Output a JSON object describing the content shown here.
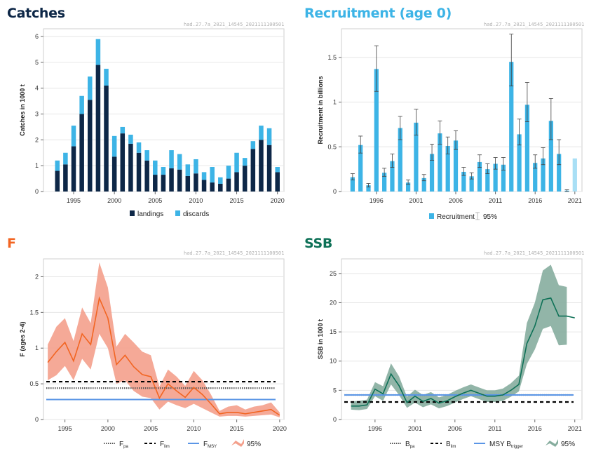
{
  "panels": [
    {
      "title": "Catches",
      "code": "had.27.7a_2021_14545_2021111100501",
      "title_color": "#0d2747"
    },
    {
      "title": "Recruitment (age 0)",
      "code": "had.27.7a_2021_14545_2021111100501",
      "title_color": "#3db4e6"
    },
    {
      "title": "F",
      "code": "had.27.7a_2021_14545_2021111100501",
      "title_color": "#f26522"
    },
    {
      "title": "SSB",
      "code": "had.27.7a_2021_14545_2021111100501",
      "title_color": "#0e7157"
    }
  ],
  "chart_data": [
    {
      "type": "bar",
      "stacked": true,
      "ylabel": "Catches in 1000 t",
      "xlabel": "",
      "ylim": [
        0,
        6.3
      ],
      "yticks": [
        0,
        1,
        2,
        3,
        4,
        5,
        6
      ],
      "xticks": [
        1995,
        2000,
        2005,
        2010,
        2015,
        2020
      ],
      "x": [
        1993,
        1994,
        1995,
        1996,
        1997,
        1998,
        1999,
        2000,
        2001,
        2002,
        2003,
        2004,
        2005,
        2006,
        2007,
        2008,
        2009,
        2010,
        2011,
        2012,
        2013,
        2014,
        2015,
        2016,
        2017,
        2018,
        2019,
        2020
      ],
      "series": [
        {
          "name": "landings",
          "color": "#0d2747",
          "values": [
            0.8,
            1.05,
            1.75,
            3.0,
            3.55,
            4.9,
            4.1,
            1.35,
            2.25,
            1.85,
            1.5,
            1.2,
            0.65,
            0.65,
            0.9,
            0.85,
            0.6,
            0.7,
            0.45,
            0.35,
            0.3,
            0.5,
            0.75,
            1.0,
            1.65,
            2.0,
            1.8,
            0.75
          ]
        },
        {
          "name": "discards",
          "color": "#3db4e6",
          "values": [
            0.4,
            0.45,
            0.8,
            0.7,
            0.9,
            1.0,
            0.65,
            0.8,
            0.25,
            0.35,
            0.4,
            0.4,
            0.55,
            0.3,
            0.7,
            0.6,
            0.45,
            0.55,
            0.3,
            0.6,
            0.25,
            0.5,
            0.75,
            0.3,
            0.3,
            0.55,
            0.65,
            0.2
          ]
        }
      ],
      "legend": [
        "landings",
        "discards"
      ],
      "legend_position": "bottom"
    },
    {
      "type": "bar",
      "ylabel": "Recruitment in billions",
      "xlabel": "",
      "ylim": [
        0,
        1.82
      ],
      "yticks": [
        0,
        0.5,
        1,
        1.5
      ],
      "xticks": [
        1996,
        2001,
        2006,
        2011,
        2016,
        2021
      ],
      "x": [
        1993,
        1994,
        1995,
        1996,
        1997,
        1998,
        1999,
        2000,
        2001,
        2002,
        2003,
        2004,
        2005,
        2006,
        2007,
        2008,
        2009,
        2010,
        2011,
        2012,
        2013,
        2014,
        2015,
        2016,
        2017,
        2018,
        2019,
        2020,
        2021
      ],
      "values": [
        0.16,
        0.52,
        0.07,
        1.37,
        0.21,
        0.34,
        0.71,
        0.1,
        0.77,
        0.15,
        0.42,
        0.65,
        0.51,
        0.57,
        0.22,
        0.17,
        0.33,
        0.25,
        0.31,
        0.3,
        1.45,
        0.64,
        0.97,
        0.32,
        0.37,
        0.79,
        0.42,
        0.01,
        0.37
      ],
      "ci_low": [
        0.13,
        0.43,
        0.05,
        1.12,
        0.17,
        0.27,
        0.58,
        0.08,
        0.63,
        0.12,
        0.35,
        0.53,
        0.42,
        0.47,
        0.18,
        0.14,
        0.27,
        0.2,
        0.25,
        0.24,
        1.18,
        0.52,
        0.78,
        0.26,
        0.3,
        0.58,
        0.3,
        0.0,
        null
      ],
      "ci_high": [
        0.2,
        0.62,
        0.09,
        1.63,
        0.26,
        0.42,
        0.84,
        0.13,
        0.92,
        0.19,
        0.53,
        0.79,
        0.61,
        0.68,
        0.27,
        0.21,
        0.41,
        0.31,
        0.38,
        0.38,
        1.76,
        0.81,
        1.22,
        0.41,
        0.49,
        1.04,
        0.58,
        0.02,
        null
      ],
      "colors": {
        "bar": "#3db4e6",
        "bar_last": "#a8dff5",
        "ci": "#404040"
      },
      "legend": [
        "Recruitment",
        "95%"
      ],
      "legend_position": "bottom"
    },
    {
      "type": "line",
      "ylabel": "F (ages 2-4)",
      "xlabel": "",
      "ylim": [
        0,
        2.25
      ],
      "yticks": [
        0,
        0.5,
        1,
        1.5,
        2
      ],
      "xticks": [
        1995,
        2000,
        2005,
        2010,
        2015,
        2020
      ],
      "x": [
        1993,
        1994,
        1995,
        1996,
        1997,
        1998,
        1999,
        2000,
        2001,
        2002,
        2003,
        2004,
        2005,
        2006,
        2007,
        2008,
        2009,
        2010,
        2011,
        2012,
        2013,
        2014,
        2015,
        2016,
        2017,
        2018,
        2019,
        2020
      ],
      "series": [
        {
          "name": "F",
          "color": "#f26522",
          "values": [
            0.8,
            0.95,
            1.08,
            0.82,
            1.2,
            1.05,
            1.7,
            1.42,
            0.77,
            0.9,
            0.74,
            0.63,
            0.6,
            0.3,
            0.5,
            0.4,
            0.31,
            0.45,
            0.35,
            0.22,
            0.08,
            0.1,
            0.1,
            0.08,
            0.1,
            0.12,
            0.14,
            0.06
          ]
        }
      ],
      "ci_low": [
        0.55,
        0.62,
        0.75,
        0.55,
        0.85,
        0.7,
        1.2,
        1.0,
        0.5,
        0.55,
        0.4,
        0.32,
        0.3,
        0.14,
        0.25,
        0.2,
        0.16,
        0.22,
        0.16,
        0.1,
        0.04,
        0.05,
        0.05,
        0.04,
        0.05,
        0.06,
        0.07,
        0.03
      ],
      "ci_high": [
        1.05,
        1.3,
        1.42,
        1.1,
        1.57,
        1.35,
        2.2,
        1.85,
        1.02,
        1.2,
        1.08,
        0.95,
        0.9,
        0.46,
        0.7,
        0.6,
        0.47,
        0.68,
        0.55,
        0.35,
        0.12,
        0.18,
        0.2,
        0.14,
        0.18,
        0.2,
        0.24,
        0.1
      ],
      "ref_lines": [
        {
          "name": "Fpa",
          "value": 0.44,
          "style": "dotted",
          "color": "#555555"
        },
        {
          "name": "Flim",
          "value": 0.53,
          "style": "dashed",
          "color": "#000000"
        },
        {
          "name": "FMSY",
          "value": 0.28,
          "style": "solid",
          "color": "#5b96e6"
        }
      ],
      "legend": [
        {
          "main": "F",
          "sub": "pa"
        },
        {
          "main": "F",
          "sub": "lim"
        },
        {
          "main": "F",
          "sub": "MSY"
        },
        {
          "main": "95%",
          "sub": ""
        }
      ],
      "band_color": "#f4a08c",
      "legend_position": "bottom"
    },
    {
      "type": "line",
      "ylabel": "SSB in 1000 t",
      "xlabel": "",
      "ylim": [
        0,
        27.5
      ],
      "yticks": [
        0,
        5,
        10,
        15,
        20,
        25
      ],
      "xticks": [
        1996,
        2001,
        2006,
        2011,
        2016,
        2021
      ],
      "x": [
        1993,
        1994,
        1995,
        1996,
        1997,
        1998,
        1999,
        2000,
        2001,
        2002,
        2003,
        2004,
        2005,
        2006,
        2007,
        2008,
        2009,
        2010,
        2011,
        2012,
        2013,
        2014,
        2015,
        2016,
        2017,
        2018,
        2019,
        2020,
        2021
      ],
      "series": [
        {
          "name": "SSB",
          "color": "#0e7157",
          "values": [
            2.3,
            2.3,
            2.5,
            5.2,
            4.4,
            7.8,
            5.8,
            2.9,
            4.0,
            3.1,
            3.6,
            2.8,
            3.2,
            3.9,
            4.5,
            5.0,
            4.5,
            4.0,
            4.0,
            4.2,
            5.0,
            6.0,
            13.0,
            16.0,
            20.5,
            20.8,
            17.7,
            17.7,
            17.4
          ]
        }
      ],
      "ci_low": [
        1.7,
        1.6,
        1.8,
        4.0,
        3.2,
        6.0,
        4.2,
        2.0,
        2.9,
        2.1,
        2.6,
        1.9,
        2.3,
        2.9,
        3.5,
        4.0,
        3.5,
        3.0,
        3.0,
        3.2,
        3.9,
        4.8,
        9.5,
        12.0,
        15.5,
        16.0,
        12.7,
        12.8,
        null
      ],
      "ci_high": [
        3.1,
        3.2,
        3.4,
        6.4,
        5.7,
        9.6,
        7.4,
        3.9,
        5.1,
        4.2,
        4.7,
        3.8,
        4.2,
        4.9,
        5.5,
        6.0,
        5.5,
        5.0,
        5.0,
        5.3,
        6.2,
        7.5,
        16.5,
        20.0,
        25.5,
        26.5,
        23.0,
        22.7,
        null
      ],
      "ref_lines": [
        {
          "name": "Bpa",
          "value": 4.2,
          "style": "dotted",
          "color": "#555555"
        },
        {
          "name": "Blim",
          "value": 3.0,
          "style": "dashed",
          "color": "#000000"
        },
        {
          "name": "MSY Btrigger",
          "value": 4.2,
          "style": "solid",
          "color": "#5b96e6"
        }
      ],
      "legend": [
        {
          "main": "B",
          "sub": "pa"
        },
        {
          "main": "B",
          "sub": "lim"
        },
        {
          "main": "MSY B",
          "sub": "trigger"
        },
        {
          "main": "95%",
          "sub": ""
        }
      ],
      "band_color": "#86ad9e",
      "legend_position": "bottom"
    }
  ]
}
